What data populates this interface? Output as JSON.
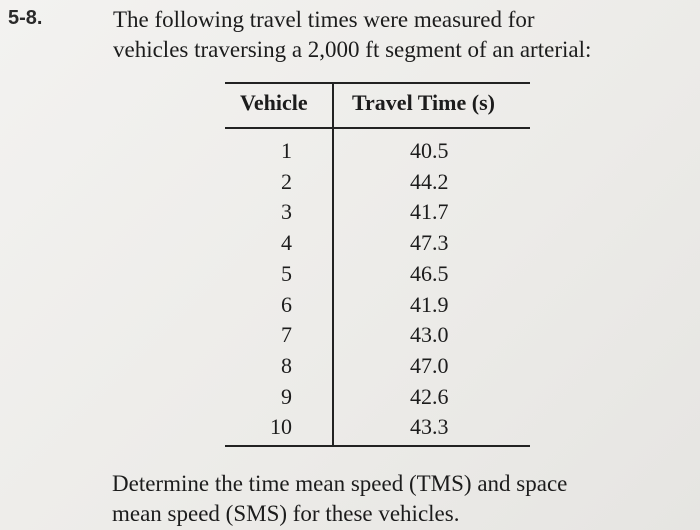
{
  "problem": {
    "number": "5-8.",
    "intro_lines": [
      "The following travel times were measured for",
      "vehicles traversing a 2,000 ft segment of an arterial:"
    ],
    "question_lines": [
      "Determine the time mean speed (TMS) and space",
      "mean speed (SMS) for these vehicles."
    ]
  },
  "table": {
    "headers": [
      "Vehicle",
      "Travel Time (s)"
    ],
    "rows": [
      [
        "1",
        "40.5"
      ],
      [
        "2",
        "44.2"
      ],
      [
        "3",
        "41.7"
      ],
      [
        "4",
        "47.3"
      ],
      [
        "5",
        "46.5"
      ],
      [
        "6",
        "41.9"
      ],
      [
        "7",
        "43.0"
      ],
      [
        "8",
        "47.0"
      ],
      [
        "9",
        "42.6"
      ],
      [
        "10",
        "43.3"
      ]
    ]
  }
}
